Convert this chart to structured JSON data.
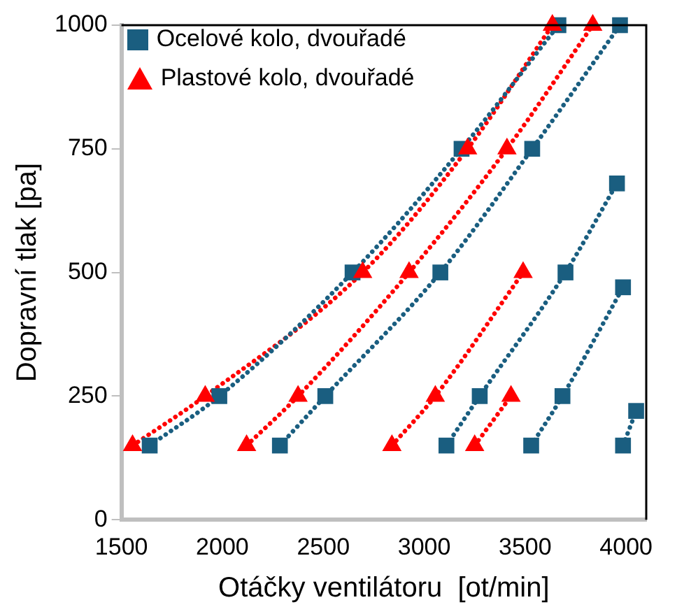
{
  "chart_data": {
    "type": "scatter",
    "xlabel": "Otáčky ventilátoru  [ot/min]",
    "ylabel": "Dopravní tlak [pa]",
    "xlim": [
      1500,
      4100
    ],
    "xticks": [
      1500,
      2000,
      2500,
      3000,
      3500,
      4000
    ],
    "ylim": [
      0,
      1000
    ],
    "yticks": [
      0,
      250,
      500,
      750,
      1000
    ],
    "grid": false,
    "legend": "top left",
    "series": [
      {
        "name": "Ocelové kolo, dvouřadé",
        "color": "#1a5e80",
        "marker": "square",
        "x": [
          1640,
          1985,
          2645,
          3185,
          3665,
          2285,
          2510,
          3080,
          3535,
          3970,
          3110,
          3275,
          3700,
          3955,
          3530,
          3685,
          3985,
          4050,
          3985
        ],
        "values": [
          150,
          250,
          500,
          750,
          1000,
          150,
          250,
          500,
          750,
          1000,
          150,
          250,
          500,
          680,
          150,
          250,
          470,
          220,
          150
        ]
      },
      {
        "name": "Plastové kolo, dvouřadé",
        "color": "#ff0000",
        "marker": "triangle",
        "x": [
          1555,
          1915,
          2695,
          3215,
          3635,
          2120,
          2375,
          2925,
          3410,
          3835,
          2840,
          3055,
          3490,
          3250,
          3430
        ],
        "values": [
          150,
          250,
          500,
          750,
          1000,
          150,
          250,
          500,
          750,
          1000,
          150,
          250,
          500,
          150,
          250
        ]
      },
      {
        "type": "line",
        "color": "#1a5e80",
        "line_style": "dotted",
        "marker": "none",
        "x": [
          1640,
          1985,
          2645,
          3185,
          3665
        ],
        "values": [
          150,
          250,
          500,
          750,
          1000
        ]
      },
      {
        "type": "line",
        "color": "#1a5e80",
        "line_style": "dotted",
        "marker": "none",
        "x": [
          2285,
          2510,
          3080,
          3535,
          3970
        ],
        "values": [
          150,
          250,
          500,
          750,
          1000
        ]
      },
      {
        "type": "line",
        "color": "#1a5e80",
        "line_style": "dotted",
        "marker": "none",
        "x": [
          3110,
          3275,
          3700,
          3955
        ],
        "values": [
          150,
          250,
          500,
          680
        ]
      },
      {
        "type": "line",
        "color": "#1a5e80",
        "line_style": "dotted",
        "marker": "none",
        "x": [
          3530,
          3685,
          3985
        ],
        "values": [
          150,
          250,
          470
        ]
      },
      {
        "type": "line",
        "color": "#1a5e80",
        "line_style": "dotted",
        "marker": "none",
        "x": [
          3985,
          4050
        ],
        "values": [
          150,
          220
        ]
      },
      {
        "type": "line",
        "color": "#ff0000",
        "line_style": "dotted",
        "marker": "none",
        "x": [
          1555,
          1915,
          2695,
          3215,
          3635
        ],
        "values": [
          150,
          250,
          500,
          750,
          1000
        ]
      },
      {
        "type": "line",
        "color": "#ff0000",
        "line_style": "dotted",
        "marker": "none",
        "x": [
          2120,
          2375,
          2925,
          3410,
          3835
        ],
        "values": [
          150,
          250,
          500,
          750,
          1000
        ]
      },
      {
        "type": "line",
        "color": "#ff0000",
        "line_style": "dotted",
        "marker": "none",
        "x": [
          2840,
          3055,
          3490
        ],
        "values": [
          150,
          250,
          500
        ]
      },
      {
        "type": "line",
        "color": "#ff0000",
        "line_style": "dotted",
        "marker": "none",
        "x": [
          3250,
          3430
        ],
        "values": [
          150,
          250
        ]
      }
    ]
  }
}
